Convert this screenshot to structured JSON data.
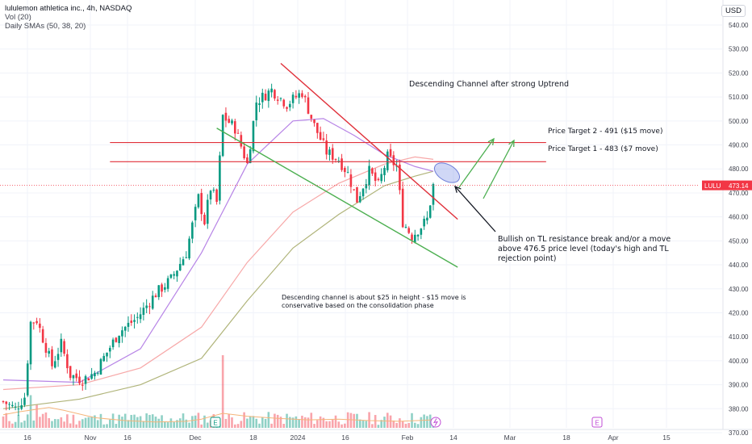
{
  "header": {
    "title": "lululemon athletica inc., 4h, NASDAQ",
    "indicator_vol": "Vol (20)",
    "indicator_sma": "Daily SMAs (50, 38, 20)",
    "currency": "USD"
  },
  "price_tag": {
    "symbol": "LULU",
    "value": "473.14",
    "color": "#f23645"
  },
  "colors": {
    "up": "#089981",
    "down": "#f23645",
    "sma50": "#b0b47a",
    "sma38": "#f7a8a8",
    "sma20": "#b784e6",
    "vol_ma": "#f5b57a",
    "resistance": "#e0303a",
    "channel_lower": "#4caf50",
    "arrow_up": "#4caf50",
    "ellipse": "#a9b8f0"
  },
  "chart_data": {
    "type": "candlestick",
    "title": "lululemon athletica inc., 4h, NASDAQ",
    "ylim": [
      365,
      548
    ],
    "y_ticks": [
      "540.00",
      "530.00",
      "520.00",
      "510.00",
      "500.00",
      "490.00",
      "480.00",
      "470.00",
      "460.00",
      "450.00",
      "440.00",
      "430.00",
      "420.00",
      "410.00",
      "400.00",
      "390.00",
      "380.00",
      "370.00"
    ],
    "x_ticks": [
      "16",
      "Nov",
      "16",
      "Dec",
      "18",
      "2024",
      "16",
      "Feb",
      "14",
      "Mar",
      "18",
      "Apr",
      "15"
    ],
    "last_price": 473.14,
    "price_path": [
      {
        "bar": 0,
        "price": 383
      },
      {
        "bar": 4,
        "price": 380
      },
      {
        "bar": 7,
        "price": 385
      },
      {
        "bar": 9,
        "price": 416
      },
      {
        "bar": 11,
        "price": 417
      },
      {
        "bar": 16,
        "price": 398
      },
      {
        "bar": 19,
        "price": 407
      },
      {
        "bar": 22,
        "price": 394
      },
      {
        "bar": 26,
        "price": 392
      },
      {
        "bar": 30,
        "price": 395
      },
      {
        "bar": 38,
        "price": 412
      },
      {
        "bar": 44,
        "price": 418
      },
      {
        "bar": 50,
        "price": 428
      },
      {
        "bar": 55,
        "price": 434
      },
      {
        "bar": 60,
        "price": 445
      },
      {
        "bar": 64,
        "price": 468
      },
      {
        "bar": 66,
        "price": 458
      },
      {
        "bar": 68,
        "price": 472
      },
      {
        "bar": 70,
        "price": 466
      },
      {
        "bar": 72,
        "price": 502
      },
      {
        "bar": 76,
        "price": 497
      },
      {
        "bar": 80,
        "price": 482
      },
      {
        "bar": 83,
        "price": 508
      },
      {
        "bar": 88,
        "price": 513
      },
      {
        "bar": 93,
        "price": 507
      },
      {
        "bar": 98,
        "price": 512
      },
      {
        "bar": 102,
        "price": 498
      },
      {
        "bar": 106,
        "price": 487
      },
      {
        "bar": 110,
        "price": 484
      },
      {
        "bar": 113,
        "price": 478
      },
      {
        "bar": 116,
        "price": 467
      },
      {
        "bar": 120,
        "price": 479
      },
      {
        "bar": 123,
        "price": 473
      },
      {
        "bar": 126,
        "price": 485
      },
      {
        "bar": 129,
        "price": 481
      },
      {
        "bar": 131,
        "price": 458
      },
      {
        "bar": 134,
        "price": 452
      },
      {
        "bar": 137,
        "price": 456
      },
      {
        "bar": 139,
        "price": 459
      },
      {
        "bar": 141,
        "price": 473
      }
    ],
    "sma_series": [
      {
        "name": "SMA 50",
        "points": [
          [
            0,
            380
          ],
          [
            25,
            384
          ],
          [
            45,
            390
          ],
          [
            65,
            401
          ],
          [
            80,
            425
          ],
          [
            95,
            447
          ],
          [
            110,
            461
          ],
          [
            125,
            473
          ],
          [
            135,
            477
          ],
          [
            141,
            479
          ]
        ]
      },
      {
        "name": "SMA 38",
        "points": [
          [
            0,
            388
          ],
          [
            25,
            390
          ],
          [
            45,
            397
          ],
          [
            65,
            414
          ],
          [
            80,
            441
          ],
          [
            95,
            462
          ],
          [
            110,
            474
          ],
          [
            125,
            482
          ],
          [
            135,
            485
          ],
          [
            141,
            484
          ]
        ]
      },
      {
        "name": "SMA 20",
        "points": [
          [
            0,
            392
          ],
          [
            25,
            391
          ],
          [
            45,
            405
          ],
          [
            65,
            445
          ],
          [
            80,
            482
          ],
          [
            95,
            500
          ],
          [
            105,
            501
          ],
          [
            115,
            494
          ],
          [
            125,
            486
          ],
          [
            135,
            481
          ],
          [
            141,
            479
          ]
        ]
      }
    ],
    "volume": {
      "ma": [
        [
          0,
          18
        ],
        [
          5,
          22
        ],
        [
          10,
          25
        ],
        [
          15,
          28
        ],
        [
          20,
          24
        ],
        [
          30,
          14
        ],
        [
          40,
          10
        ],
        [
          50,
          8
        ],
        [
          60,
          9
        ],
        [
          65,
          12
        ],
        [
          72,
          20
        ],
        [
          80,
          16
        ],
        [
          90,
          13
        ],
        [
          100,
          11
        ],
        [
          110,
          12
        ],
        [
          120,
          10
        ],
        [
          130,
          9
        ],
        [
          141,
          11
        ]
      ],
      "spikes": [
        {
          "bar": 72,
          "value": 100
        },
        {
          "bar": 9,
          "value": 45
        },
        {
          "bar": 11,
          "value": 32
        }
      ]
    },
    "drawings": {
      "resistance_line": {
        "from": [
          91,
          524
        ],
        "to": [
          149,
          459
        ]
      },
      "lower_channel": {
        "from": [
          70,
          497
        ],
        "to": [
          149,
          439
        ]
      },
      "target2_line": {
        "from": [
          35,
          491
        ],
        "to": [
          178,
          491
        ]
      },
      "target1_line": {
        "from": [
          35,
          483
        ],
        "to": [
          178,
          483
        ]
      }
    },
    "annotations": {
      "channel_title": "Descending Channel after strong Uptrend",
      "target2": "Price Target 2 - 491 ($15 move)",
      "target1": "Price Target 1 - 483 ($7 move)",
      "bullish": [
        "Bullish on TL resistance break and/or a move",
        "above 476.5 price level (today's high and TL",
        "rejection point)"
      ],
      "channel_note": [
        "Descending channel is about $25 in height - $15 move is",
        "conservative based on the consolidation phase"
      ]
    },
    "event_markers": [
      "E",
      "E"
    ]
  }
}
